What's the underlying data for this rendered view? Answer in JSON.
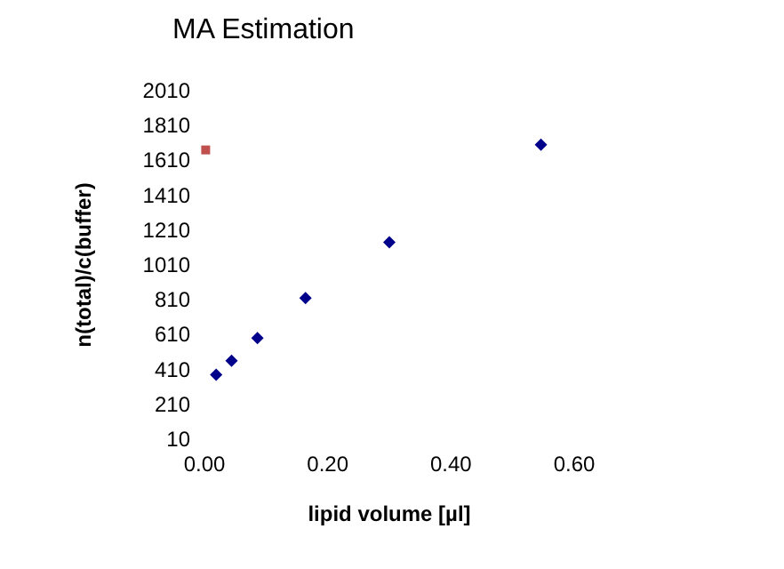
{
  "chart_data": {
    "type": "scatter",
    "title": "MA Estimation",
    "xlabel": "lipid volume [µl]",
    "ylabel": "n(total)/c(buffer)",
    "series": [
      {
        "color": "#00008b",
        "marker": "diamond",
        "x": [
          0.019,
          0.044,
          0.086,
          0.164,
          0.3,
          0.546
        ],
        "values": [
          380,
          460,
          590,
          820,
          1140,
          1700
        ]
      },
      {
        "color": "#c0504d",
        "marker": "square",
        "x": [
          0.002
        ],
        "values": [
          1670
        ]
      }
    ],
    "xlim": [
      0,
      0.6
    ],
    "xticks": [
      {
        "value": 0,
        "label": "0.00"
      },
      {
        "value": 0.2,
        "label": "0.20"
      },
      {
        "value": 0.4,
        "label": "0.40"
      },
      {
        "value": 0.6,
        "label": "0.60"
      }
    ],
    "ylim": [
      10,
      2010
    ],
    "yticks": [
      10,
      210,
      410,
      610,
      810,
      1010,
      1210,
      1410,
      1610,
      1810,
      2010
    ],
    "grid": false
  }
}
